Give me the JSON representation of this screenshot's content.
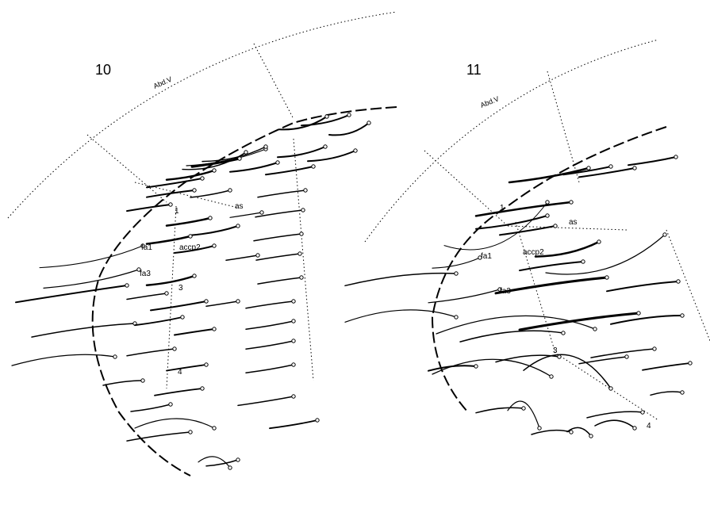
{
  "figures": [
    {
      "number": "10",
      "segment": "Abd.V",
      "labels": [
        "as",
        "1",
        "fa1",
        "accp2",
        "fa3",
        "3",
        "4"
      ]
    },
    {
      "number": "11",
      "segment": "Abd.V",
      "labels": [
        "1",
        "as",
        "fa1",
        "accp2",
        "fa3",
        "3",
        "4"
      ]
    }
  ]
}
